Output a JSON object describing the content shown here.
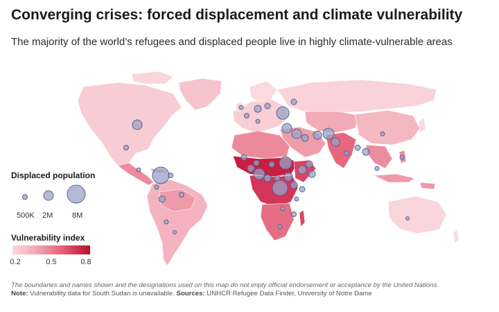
{
  "title": "Converging crises: forced displacement and climate vulnerability",
  "subtitle": "The majority of the world’s refugees and displaced people live in highly climate-vulnerable areas",
  "legend_population": {
    "title": "Displaced population",
    "labels": [
      "500K",
      "2M",
      "8M"
    ]
  },
  "legend_vulnerability": {
    "title": "Vulnerability index",
    "labels": [
      "0.2",
      "0.5",
      "0.8"
    ]
  },
  "footnote": "The boundaries and names shown and the designations used on this map do not imply official endorsement or acceptance by the United Nations.",
  "note": {
    "note_label": "Note:",
    "note_text": " Vulnerability data for South Sudan is unavailable. ",
    "sources_label": "Sources:",
    "sources_text": " UNHCR Refugee Data Finder, University of Notre Dame"
  },
  "colors": {
    "low_vulnerability": "#f9d9de",
    "mid_vulnerability": "#e35a73",
    "high_vulnerability": "#b8102f",
    "bubble_fill": "#9aa3c8",
    "bubble_stroke": "#5a6394"
  }
}
